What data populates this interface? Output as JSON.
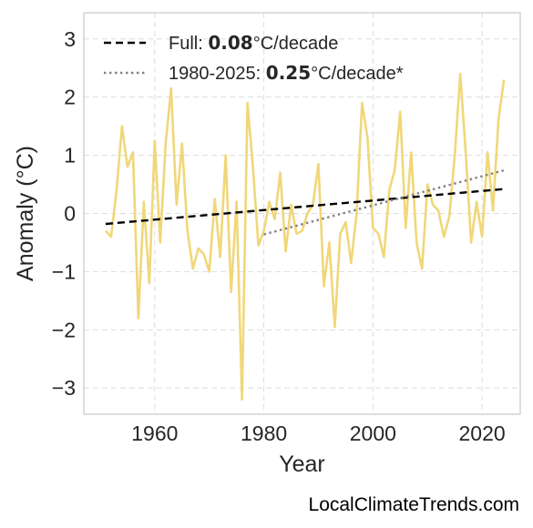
{
  "chart_data": {
    "type": "line",
    "xlabel": "Year",
    "ylabel": "Anomaly (°C)",
    "xlim": [
      1947,
      2027
    ],
    "ylim": [
      -3.45,
      3.45
    ],
    "x_ticks": [
      1960,
      1980,
      2000,
      2020
    ],
    "y_ticks": [
      -3,
      -2,
      -1,
      0,
      1,
      2,
      3
    ],
    "y_tick_labels": [
      "−3",
      "−2",
      "−1",
      "0",
      "1",
      "2",
      "3"
    ],
    "grid": true,
    "legend_position": "top-left",
    "series": [
      {
        "style": "solid",
        "color": "#f0d77a",
        "x": [
          1951,
          1952,
          1953,
          1954,
          1955,
          1956,
          1957,
          1958,
          1959,
          1960,
          1961,
          1962,
          1963,
          1964,
          1965,
          1966,
          1967,
          1968,
          1969,
          1970,
          1971,
          1972,
          1973,
          1974,
          1975,
          1976,
          1977,
          1978,
          1979,
          1980,
          1981,
          1982,
          1983,
          1984,
          1985,
          1986,
          1987,
          1988,
          1989,
          1990,
          1991,
          1992,
          1993,
          1994,
          1995,
          1996,
          1997,
          1998,
          1999,
          2000,
          2001,
          2002,
          2003,
          2004,
          2005,
          2006,
          2007,
          2008,
          2009,
          2010,
          2011,
          2012,
          2013,
          2014,
          2015,
          2016,
          2017,
          2018,
          2019,
          2020,
          2021,
          2022,
          2023,
          2024
        ],
        "y": [
          -0.3,
          -0.4,
          0.4,
          1.5,
          0.8,
          1.05,
          -1.8,
          0.2,
          -1.2,
          1.25,
          -0.5,
          1.2,
          2.15,
          0.15,
          1.2,
          -0.3,
          -0.95,
          -0.6,
          -0.7,
          -1.0,
          0.25,
          -0.75,
          1.0,
          -1.35,
          0.2,
          -3.2,
          1.9,
          0.8,
          -0.55,
          -0.3,
          0.2,
          -0.1,
          0.7,
          -0.65,
          0.15,
          -0.35,
          -0.3,
          0.0,
          0.15,
          0.85,
          -1.25,
          -0.5,
          -1.95,
          -0.35,
          -0.15,
          -0.85,
          0.0,
          1.9,
          1.3,
          -0.25,
          -0.35,
          -0.75,
          0.4,
          0.75,
          1.75,
          -0.25,
          1.05,
          -0.5,
          -0.95,
          0.5,
          0.15,
          0.05,
          -0.4,
          -0.05,
          1.0,
          2.4,
          1.05,
          -0.5,
          0.2,
          -0.4,
          1.05,
          0.05,
          1.6,
          2.3
        ]
      },
      {
        "name": "Full",
        "style": "dashed",
        "color": "#000000",
        "x": [
          1951,
          2024
        ],
        "y": [
          -0.18,
          0.42
        ],
        "rate": "0.08",
        "unit": "°C/decade"
      },
      {
        "name": "1980-2025",
        "style": "dotted",
        "color": "#808080",
        "x": [
          1980,
          2024
        ],
        "y": [
          -0.36,
          0.74
        ],
        "rate": "0.25",
        "unit": "°C/decade*"
      }
    ]
  },
  "watermark": "LocalClimateTrends.com"
}
